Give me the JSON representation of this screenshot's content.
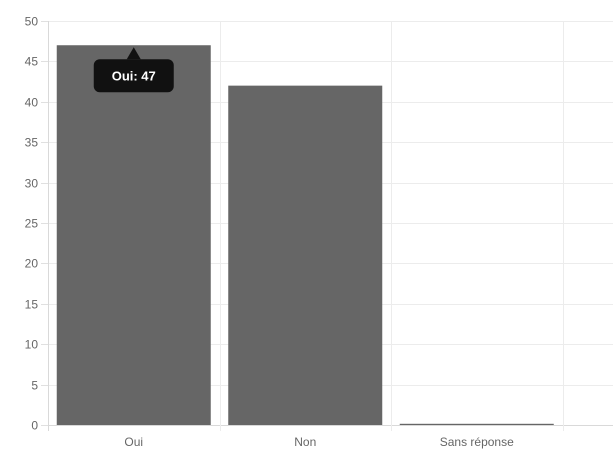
{
  "chart_data": {
    "type": "bar",
    "categories": [
      "Oui",
      "Non",
      "Sans réponse"
    ],
    "values": [
      47,
      42,
      0
    ],
    "ylim": [
      0,
      50
    ],
    "y_ticks": [
      0,
      5,
      10,
      15,
      20,
      25,
      30,
      35,
      40,
      45,
      50
    ],
    "grid": true,
    "bar_color": "#666666",
    "tooltip": {
      "category_index": 0,
      "text": "Oui: 47",
      "background": "#111111",
      "text_color": "#ffffff"
    }
  }
}
